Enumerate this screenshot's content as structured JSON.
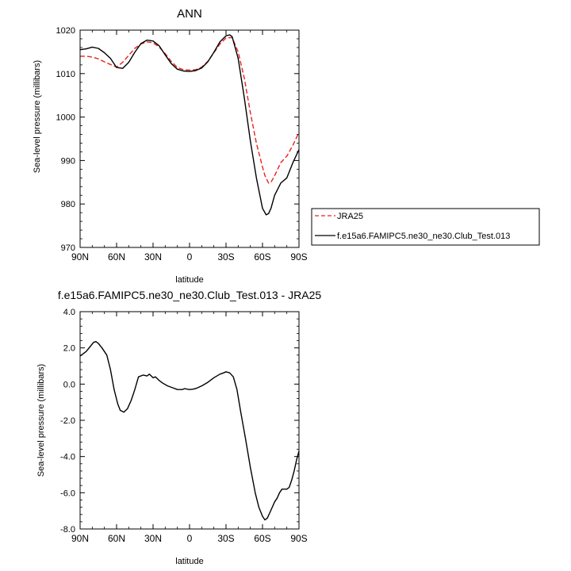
{
  "chart_data": [
    {
      "type": "line",
      "title": "ANN",
      "xlabel": "latitude",
      "ylabel": "Sea-level pressure (millibars)",
      "xlim": [
        90,
        -90
      ],
      "ylim": [
        970,
        1020
      ],
      "x_ticks": [
        90,
        60,
        30,
        0,
        -30,
        -60,
        -90
      ],
      "x_tick_labels": [
        "90N",
        "60N",
        "30N",
        "0",
        "30S",
        "60S",
        "90S"
      ],
      "y_ticks": [
        970,
        980,
        990,
        1000,
        1010,
        1020
      ],
      "y_tick_labels": [
        "970",
        "980",
        "990",
        "1000",
        "1010",
        "1020"
      ],
      "legend_position": "right",
      "series": [
        {
          "name": "JRA25",
          "color": "#e8231f",
          "dash": "dashed",
          "x": [
            90,
            85,
            80,
            75,
            70,
            65,
            60,
            55,
            50,
            45,
            40,
            35,
            30,
            25,
            20,
            15,
            10,
            5,
            0,
            -5,
            -10,
            -15,
            -20,
            -25,
            -30,
            -35,
            -40,
            -45,
            -50,
            -55,
            -60,
            -62,
            -65,
            -67,
            -70,
            -75,
            -80,
            -85,
            -90
          ],
          "y": [
            1014.0,
            1014.0,
            1013.8,
            1013.4,
            1012.7,
            1012.1,
            1011.5,
            1012.6,
            1014.2,
            1015.8,
            1016.8,
            1017.3,
            1017.1,
            1016.1,
            1014.6,
            1012.8,
            1011.4,
            1010.9,
            1010.8,
            1010.9,
            1011.5,
            1012.8,
            1014.8,
            1016.8,
            1018.2,
            1018.3,
            1015.0,
            1009.0,
            1001.0,
            994.0,
            988.5,
            986.5,
            984.8,
            985.0,
            986.5,
            989.5,
            991.0,
            993.5,
            996.5
          ]
        },
        {
          "name": "f.e15a6.FAMIPC5.ne30_ne30.Club_Test.013",
          "color": "#000000",
          "dash": "solid",
          "x": [
            90,
            85,
            80,
            75,
            70,
            65,
            60,
            55,
            50,
            45,
            40,
            35,
            30,
            25,
            20,
            15,
            10,
            5,
            0,
            -5,
            -10,
            -15,
            -20,
            -25,
            -30,
            -33,
            -35,
            -40,
            -45,
            -50,
            -55,
            -60,
            -63,
            -65,
            -67,
            -70,
            -75,
            -80,
            -85,
            -90
          ],
          "y": [
            1015.5,
            1015.7,
            1016.1,
            1015.8,
            1014.8,
            1013.5,
            1011.4,
            1011.2,
            1012.6,
            1014.9,
            1016.9,
            1017.7,
            1017.5,
            1016.4,
            1014.3,
            1012.3,
            1011.0,
            1010.6,
            1010.5,
            1010.7,
            1011.3,
            1012.7,
            1014.9,
            1017.3,
            1018.7,
            1018.9,
            1018.5,
            1013.5,
            1004.5,
            994.5,
            986.0,
            979.0,
            977.5,
            977.8,
            979.0,
            982.0,
            984.8,
            986.0,
            989.5,
            992.5
          ]
        }
      ]
    },
    {
      "type": "line",
      "title": "f.e15a6.FAMIPC5.ne30_ne30.Club_Test.013 - JRA25",
      "xlabel": "latitude",
      "ylabel": "Sea-level pressure (millibars)",
      "xlim": [
        90,
        -90
      ],
      "ylim": [
        -8,
        4
      ],
      "x_ticks": [
        90,
        60,
        30,
        0,
        -30,
        -60,
        -90
      ],
      "x_tick_labels": [
        "90N",
        "60N",
        "30N",
        "0",
        "30S",
        "60S",
        "90S"
      ],
      "y_ticks": [
        -8,
        -6,
        -4,
        -2,
        0,
        2,
        4
      ],
      "y_tick_labels": [
        "-8.0",
        "-6.0",
        "-4.0",
        "-2.0",
        "0.0",
        "2.0",
        "4.0"
      ],
      "series": [
        {
          "color": "#000000",
          "dash": "solid",
          "x": [
            90,
            85,
            82,
            79,
            77,
            75,
            72,
            68,
            65,
            62,
            59,
            57,
            54,
            51,
            48,
            45,
            42,
            38,
            35,
            33,
            30,
            28,
            25,
            22,
            18,
            14,
            10,
            6,
            4,
            2,
            0,
            -3,
            -6,
            -10,
            -15,
            -20,
            -25,
            -28,
            -30,
            -33,
            -36,
            -39,
            -42,
            -46,
            -50,
            -54,
            -57,
            -60,
            -62,
            -64,
            -66,
            -68,
            -70,
            -72,
            -74,
            -76,
            -78,
            -80,
            -82,
            -84,
            -86,
            -88,
            -90
          ],
          "y": [
            1.55,
            1.8,
            2.05,
            2.3,
            2.35,
            2.25,
            2.0,
            1.6,
            0.8,
            -0.3,
            -1.1,
            -1.45,
            -1.55,
            -1.35,
            -0.9,
            -0.3,
            0.4,
            0.5,
            0.45,
            0.55,
            0.35,
            0.4,
            0.2,
            0.05,
            -0.1,
            -0.2,
            -0.3,
            -0.3,
            -0.25,
            -0.28,
            -0.3,
            -0.28,
            -0.22,
            -0.1,
            0.1,
            0.35,
            0.55,
            0.62,
            0.68,
            0.62,
            0.4,
            -0.3,
            -1.5,
            -3.0,
            -4.6,
            -6.0,
            -6.8,
            -7.3,
            -7.5,
            -7.4,
            -7.1,
            -6.8,
            -6.5,
            -6.3,
            -6.0,
            -5.8,
            -5.8,
            -5.8,
            -5.7,
            -5.3,
            -4.8,
            -4.2,
            -3.7
          ]
        }
      ]
    }
  ]
}
